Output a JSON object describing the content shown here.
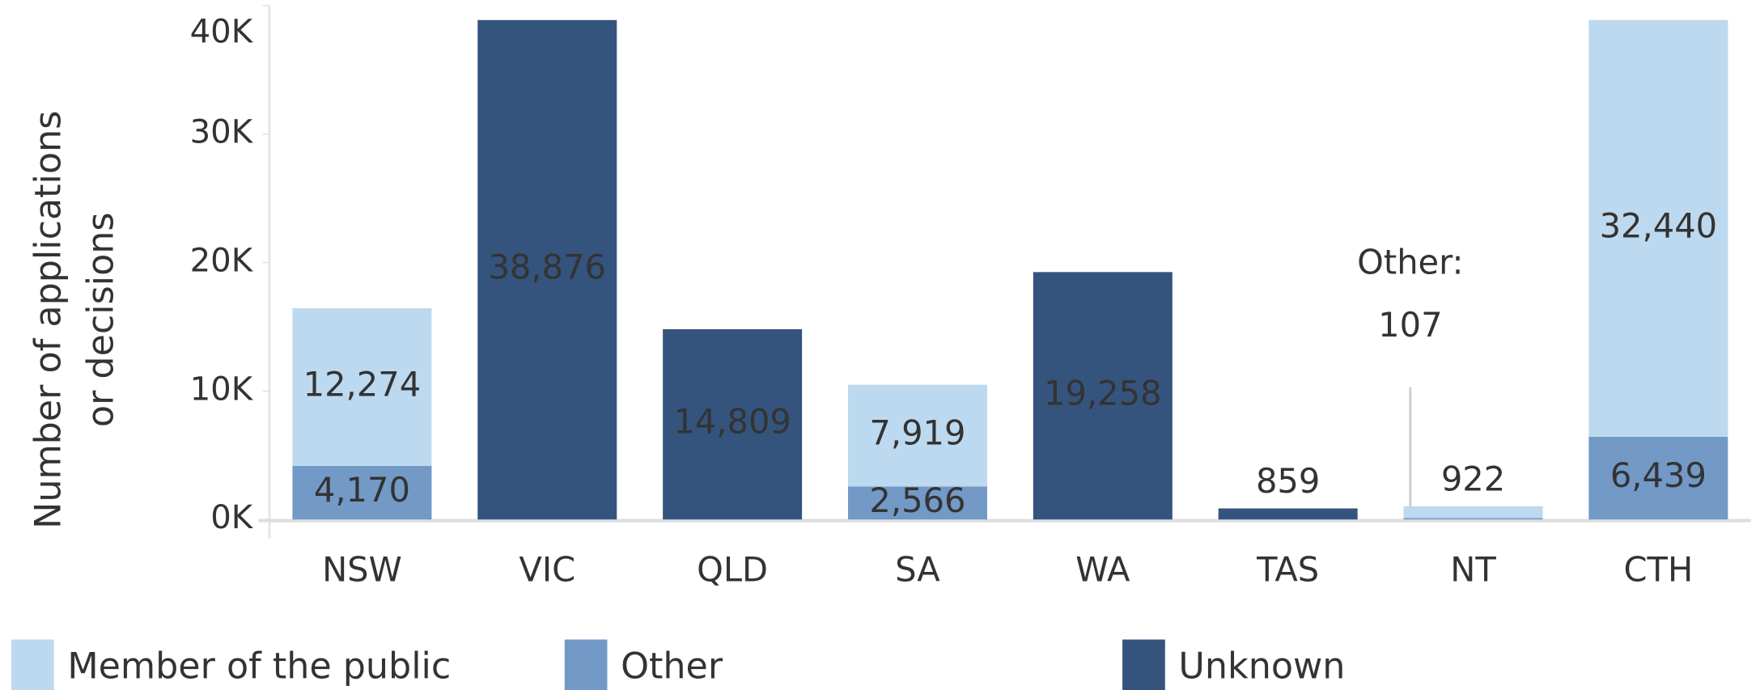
{
  "chart_data": {
    "type": "stacked_bar",
    "y_label": [
      "Number of applications",
      "or decisions"
    ],
    "categories": [
      "NSW",
      "VIC",
      "QLD",
      "SA",
      "WA",
      "TAS",
      "NT",
      "CTH"
    ],
    "series": [
      {
        "name": "Member of the public",
        "color": "#bdd9ef",
        "values": [
          12274,
          0,
          0,
          7919,
          0,
          0,
          922,
          32440
        ],
        "value_labels": [
          "12,274",
          null,
          null,
          "7,919",
          null,
          null,
          "922",
          "32,440"
        ]
      },
      {
        "name": "Other",
        "color": "#7399c6",
        "values": [
          4170,
          0,
          0,
          2566,
          0,
          0,
          107,
          6439
        ],
        "value_labels": [
          "4,170",
          null,
          null,
          "2,566",
          null,
          null,
          "107",
          "6,439"
        ]
      },
      {
        "name": "Unknown",
        "color": "#34547e",
        "values": [
          0,
          38876,
          14809,
          0,
          19258,
          859,
          0,
          0
        ],
        "value_labels": [
          null,
          "38,876",
          "14,809",
          null,
          "19,258",
          "859",
          null,
          null
        ]
      }
    ],
    "annotations": [
      {
        "text": "Other:",
        "category": 6,
        "series": 1
      }
    ],
    "ylim": [
      0,
      40000
    ],
    "yticks": [
      {
        "value": 0,
        "label": "0K"
      },
      {
        "value": 10000,
        "label": "10K"
      },
      {
        "value": 20000,
        "label": "20K"
      },
      {
        "value": 30000,
        "label": "30K"
      },
      {
        "value": 40000,
        "label": "40K"
      }
    ]
  }
}
